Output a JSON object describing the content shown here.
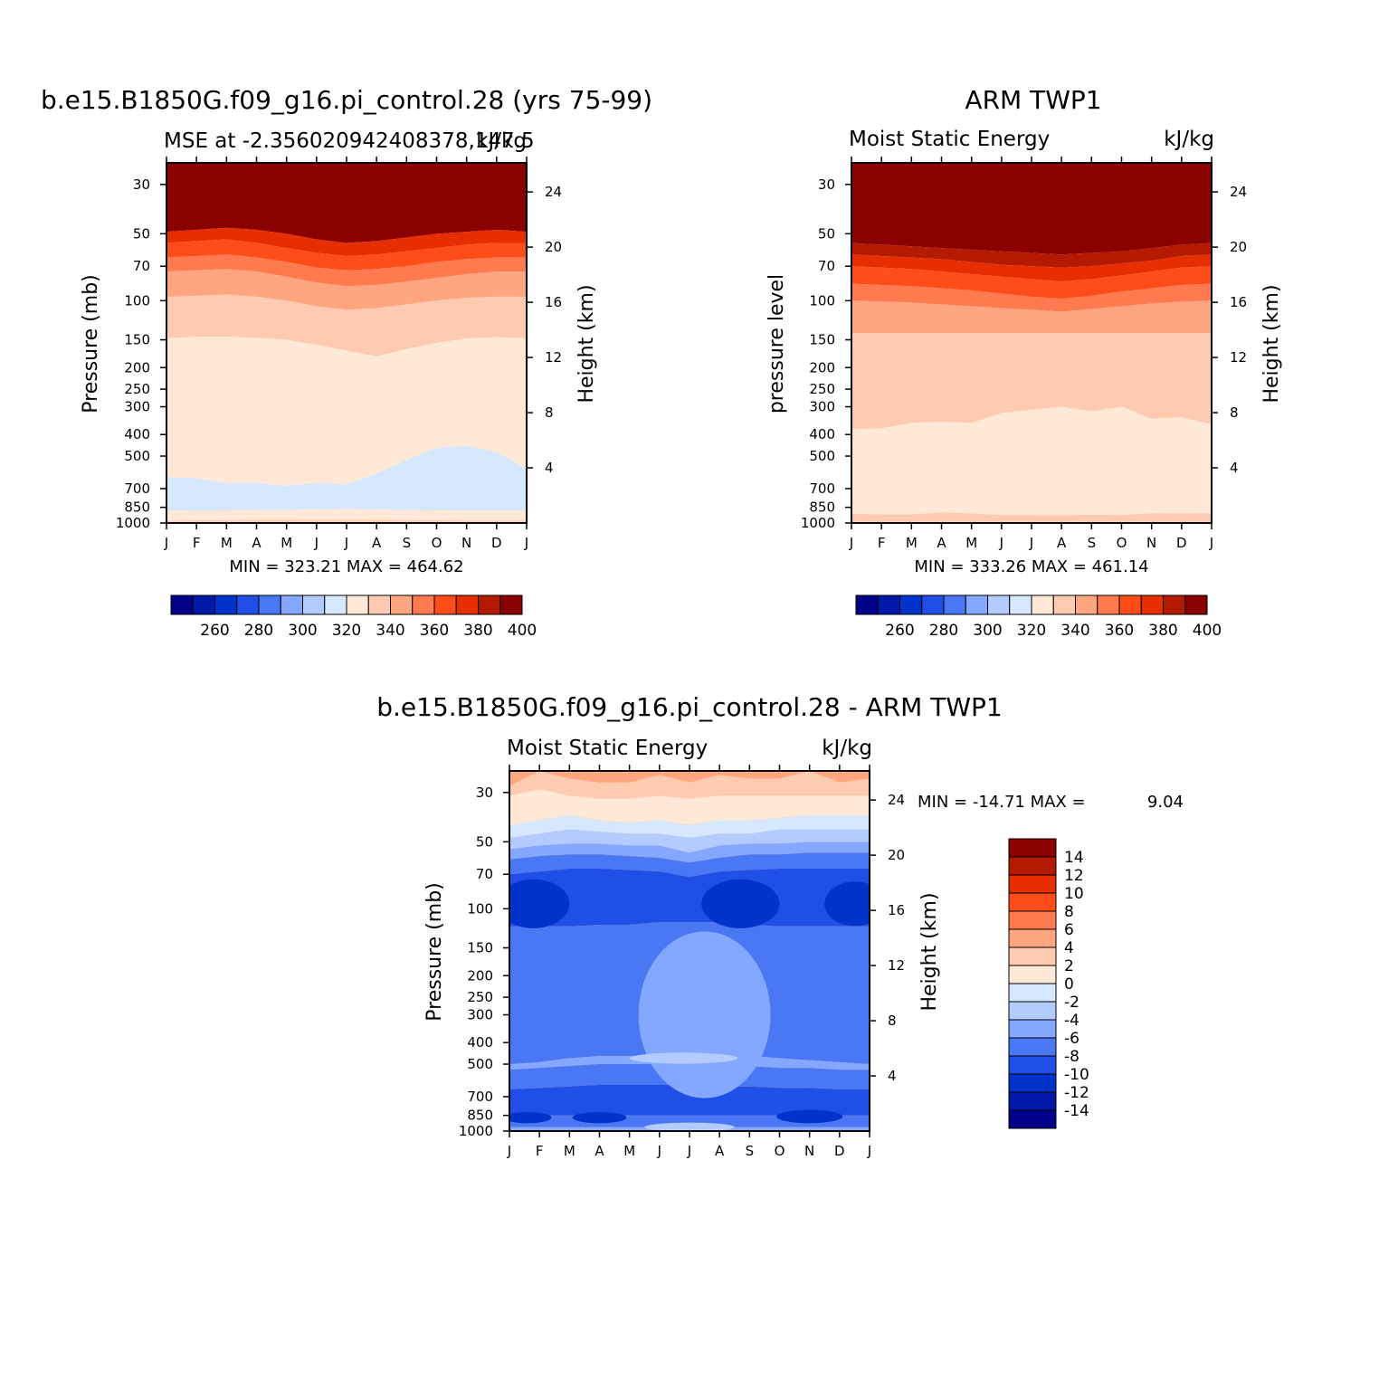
{
  "chart_data": [
    {
      "type": "heatmap",
      "title": "b.e15.B1850G.f09_g16.pi_control.28 (yrs 75-99)",
      "subtitle_left": "MSE at -2.356020942408378,147.5",
      "subtitle_right": "kJ/kg",
      "ylabel": "Pressure (mb)",
      "ylabel_right": "Height (km)",
      "min_max": "MIN = 323.21  MAX = 464.62",
      "x": [
        "J",
        "F",
        "M",
        "A",
        "M",
        "J",
        "J",
        "A",
        "S",
        "O",
        "N",
        "D",
        "J"
      ],
      "y_ticks": [
        "30",
        "50",
        "70",
        "100",
        "150",
        "200",
        "250",
        "300",
        "400",
        "500",
        "700",
        "850",
        "1000"
      ],
      "y_right_ticks": [
        "24",
        "20",
        "16",
        "12",
        "8",
        "4"
      ],
      "bands": [
        {
          "level": "400+",
          "top_mb": 30,
          "bottom_mb": [
            49,
            48,
            47,
            48,
            50,
            53,
            55,
            54,
            52,
            50,
            49,
            48,
            49
          ]
        },
        {
          "level": "380",
          "bottom_mb": [
            55,
            54,
            53,
            55,
            58,
            61,
            63,
            62,
            60,
            58,
            56,
            55,
            55
          ]
        },
        {
          "level": "370",
          "bottom_mb": [
            64,
            63,
            62,
            64,
            67,
            71,
            73,
            72,
            70,
            67,
            65,
            64,
            64
          ]
        },
        {
          "level": "360",
          "bottom_mb": [
            74,
            73,
            72,
            74,
            78,
            83,
            86,
            85,
            82,
            79,
            76,
            74,
            74
          ]
        },
        {
          "level": "350",
          "bottom_mb": [
            96,
            95,
            94,
            96,
            100,
            106,
            110,
            108,
            104,
            100,
            97,
            96,
            96
          ]
        },
        {
          "level": "340",
          "bottom_mb": [
            148,
            145,
            145,
            147,
            150,
            158,
            168,
            178,
            165,
            155,
            148,
            146,
            148
          ]
        },
        {
          "level": "330",
          "bottom_mb": [
            620,
            630,
            660,
            660,
            680,
            660,
            670,
            600,
            520,
            460,
            450,
            480,
            570
          ]
        },
        {
          "level": "320",
          "bottom_mb": [
            880,
            878,
            876,
            875,
            874,
            870,
            866,
            870,
            874,
            878,
            880,
            880,
            880
          ]
        },
        {
          "level": "330",
          "bottom_mb": [
            975,
            972,
            970,
            968,
            968,
            966,
            965,
            968,
            970,
            972,
            974,
            975,
            975
          ]
        },
        {
          "level": "340",
          "bottom_mb": [
            1000,
            1000,
            1000,
            1000,
            1000,
            1000,
            1000,
            1000,
            1000,
            1000,
            1000,
            1000,
            1000
          ]
        }
      ],
      "colorbar": {
        "labels": [
          "260",
          "280",
          "300",
          "320",
          "340",
          "360",
          "380",
          "400"
        ]
      }
    },
    {
      "type": "heatmap",
      "title": "ARM TWP1",
      "subtitle_left": "Moist Static Energy",
      "subtitle_right": "kJ/kg",
      "ylabel": "pressure level",
      "ylabel_right": "Height (km)",
      "min_max": "MIN = 333.26  MAX = 461.14",
      "x": [
        "J",
        "F",
        "M",
        "A",
        "M",
        "J",
        "J",
        "A",
        "S",
        "O",
        "N",
        "D",
        "J"
      ],
      "y_ticks": [
        "30",
        "50",
        "70",
        "100",
        "150",
        "200",
        "250",
        "300",
        "400",
        "500",
        "700",
        "850",
        "1000"
      ],
      "y_right_ticks": [
        "24",
        "20",
        "16",
        "12",
        "8",
        "4"
      ],
      "bands": [
        {
          "level": "400+",
          "top_mb": 30,
          "bottom_mb": [
            55,
            56,
            57,
            58,
            59,
            60,
            61,
            62,
            61,
            60,
            58,
            56,
            55
          ]
        },
        {
          "level": "390",
          "bottom_mb": [
            62,
            63,
            64,
            65,
            67,
            69,
            70,
            71,
            70,
            68,
            66,
            63,
            62
          ]
        },
        {
          "level": "380",
          "bottom_mb": [
            70,
            71,
            72,
            74,
            76,
            78,
            80,
            82,
            80,
            77,
            74,
            71,
            70
          ]
        },
        {
          "level": "370",
          "bottom_mb": [
            84,
            85,
            86,
            88,
            90,
            93,
            96,
            98,
            95,
            91,
            88,
            85,
            84
          ]
        },
        {
          "level": "360",
          "bottom_mb": [
            100,
            101,
            102,
            104,
            106,
            108,
            110,
            112,
            109,
            106,
            103,
            101,
            100
          ]
        },
        {
          "level": "350",
          "bottom_mb": [
            140,
            140,
            140,
            140,
            140,
            140,
            140,
            140,
            140,
            140,
            140,
            140,
            140
          ]
        },
        {
          "level": "340",
          "bottom_mb": [
            380,
            375,
            355,
            350,
            355,
            320,
            310,
            300,
            315,
            300,
            340,
            335,
            360
          ]
        },
        {
          "level": "330",
          "bottom_mb": [
            910,
            915,
            915,
            895,
            905,
            920,
            920,
            922,
            918,
            920,
            905,
            905,
            905
          ]
        },
        {
          "level": "340",
          "bottom_mb": [
            1000,
            1000,
            1000,
            1000,
            1000,
            1000,
            1000,
            1000,
            1000,
            1000,
            1000,
            1000,
            1000
          ]
        }
      ],
      "colorbar": {
        "labels": [
          "260",
          "280",
          "300",
          "320",
          "340",
          "360",
          "380",
          "400"
        ]
      }
    },
    {
      "type": "heatmap",
      "title": "b.e15.B1850G.f09_g16.pi_control.28 - ARM TWP1",
      "subtitle_left": "Moist Static Energy",
      "subtitle_right": "kJ/kg",
      "ylabel": "Pressure (mb)",
      "ylabel_right": "Height (km)",
      "min_max_label": "MIN = -14.71  MAX =",
      "min_max_value": "9.04",
      "x": [
        "J",
        "F",
        "M",
        "A",
        "M",
        "J",
        "J",
        "A",
        "S",
        "O",
        "N",
        "D",
        "J"
      ],
      "y_ticks": [
        "30",
        "50",
        "70",
        "100",
        "150",
        "200",
        "250",
        "300",
        "400",
        "500",
        "700",
        "850",
        "1000"
      ],
      "y_right_ticks": [
        "24",
        "20",
        "16",
        "12",
        "8",
        "4"
      ],
      "layers": [
        {
          "level": 4,
          "bottom_mb": [
            28,
            24,
            26,
            27,
            27,
            25,
            27,
            25,
            26,
            26,
            24,
            27,
            26
          ]
        },
        {
          "level": 2,
          "bottom_mb": [
            31,
            29,
            31,
            32,
            32,
            31,
            32,
            31,
            31,
            31,
            31,
            31,
            31
          ]
        },
        {
          "level": 0,
          "bottom_mb": [
            42,
            40,
            38,
            40,
            41,
            40,
            42,
            40,
            40,
            39,
            38,
            38,
            38
          ]
        },
        {
          "level": -2,
          "bottom_mb": [
            48,
            46,
            44,
            45,
            46,
            46,
            48,
            46,
            46,
            44,
            44,
            44,
            44
          ]
        },
        {
          "level": -4,
          "bottom_mb": [
            54,
            52,
            51,
            51,
            52,
            52,
            56,
            52,
            51,
            51,
            50,
            50,
            50
          ]
        },
        {
          "level": -6,
          "bottom_mb": [
            60,
            58,
            57,
            57,
            58,
            59,
            62,
            59,
            57,
            57,
            56,
            56,
            56
          ]
        },
        {
          "level": -8,
          "bottom_mb": [
            70,
            68,
            66,
            66,
            67,
            68,
            72,
            68,
            67,
            66,
            66,
            66,
            66
          ]
        },
        {
          "level": -10,
          "bottom_mb": [
            120,
            120,
            120,
            118,
            118,
            115,
            115,
            115,
            118,
            120,
            120,
            120,
            120
          ]
        },
        {
          "level": -8,
          "bottom_mb": [
            500,
            490,
            470,
            460,
            460,
            460,
            460,
            460,
            460,
            470,
            480,
            490,
            500
          ]
        },
        {
          "level": -6,
          "bottom_mb": [
            530,
            520,
            510,
            500,
            500,
            500,
            500,
            510,
            510,
            520,
            520,
            530,
            530
          ]
        },
        {
          "level": -8,
          "bottom_mb": [
            650,
            640,
            630,
            620,
            620,
            620,
            620,
            630,
            630,
            640,
            640,
            650,
            650
          ]
        },
        {
          "level": -10,
          "bottom_mb": [
            850,
            850,
            850,
            850,
            850,
            850,
            850,
            850,
            850,
            850,
            850,
            850,
            850
          ]
        },
        {
          "level": -8,
          "bottom_mb": [
            960,
            960,
            960,
            960,
            960,
            960,
            960,
            960,
            960,
            960,
            960,
            960,
            960
          ]
        },
        {
          "level": -6,
          "bottom_mb": [
            1000,
            1000,
            1000,
            1000,
            1000,
            1000,
            1000,
            1000,
            1000,
            1000,
            1000,
            1000,
            1000
          ]
        }
      ],
      "blobs": [
        {
          "level": -12,
          "cx_month": 0.8,
          "mb": 95,
          "wmon": 1.2,
          "hdec": 0.22
        },
        {
          "level": -12,
          "cx_month": 7.7,
          "mb": 95,
          "wmon": 1.3,
          "hdec": 0.22
        },
        {
          "level": -12,
          "cx_month": 11.5,
          "mb": 95,
          "wmon": 1.0,
          "hdec": 0.2
        },
        {
          "level": -12,
          "cx_month": 0.6,
          "mb": 870,
          "wmon": 0.8,
          "hdec": 0.05
        },
        {
          "level": -12,
          "cx_month": 3.0,
          "mb": 870,
          "wmon": 0.9,
          "hdec": 0.05
        },
        {
          "level": -12,
          "cx_month": 10.0,
          "mb": 860,
          "wmon": 1.1,
          "hdec": 0.06
        },
        {
          "level": -6,
          "cx_month": 6.5,
          "mb": 300,
          "wmon": 2.2,
          "hdec": 0.75
        },
        {
          "level": -4,
          "cx_month": 5.8,
          "mb": 470,
          "wmon": 1.8,
          "hdec": 0.05
        },
        {
          "level": -4,
          "cx_month": 6.0,
          "mb": 960,
          "wmon": 1.5,
          "hdec": 0.02
        }
      ],
      "colorbar": {
        "labels": [
          "14",
          "12",
          "10",
          "8",
          "6",
          "4",
          "2",
          "0",
          "-2",
          "-4",
          "-6",
          "-8",
          "-10",
          "-12",
          "-14"
        ]
      }
    }
  ],
  "colors": {
    "abs_levels": [
      250,
      260,
      270,
      280,
      290,
      300,
      310,
      320,
      330,
      340,
      350,
      360,
      370,
      380,
      390,
      400
    ],
    "abs_palette": [
      "#00008b",
      "#0019a8",
      "#0033cc",
      "#1f4fe6",
      "#4a78f5",
      "#84a8ff",
      "#b3cbff",
      "#d6e8ff",
      "#ffe9d6",
      "#ffcbb0",
      "#ffa57f",
      "#ff7a4f",
      "#ff4d1a",
      "#e62e00",
      "#b31a00",
      "#8b0000"
    ],
    "diff_levels": [
      -16,
      -14,
      -12,
      -10,
      -8,
      -6,
      -4,
      -2,
      0,
      2,
      4,
      6,
      8,
      10,
      12,
      14
    ],
    "diff_palette": [
      "#00008b",
      "#0019a8",
      "#0033cc",
      "#1f4fe6",
      "#4a78f5",
      "#84a8ff",
      "#b3cbff",
      "#d6e8ff",
      "#ffe9d6",
      "#ffcbb0",
      "#ffa57f",
      "#ff7a4f",
      "#ff4d1a",
      "#e62e00",
      "#b31a00",
      "#8b0000"
    ]
  }
}
